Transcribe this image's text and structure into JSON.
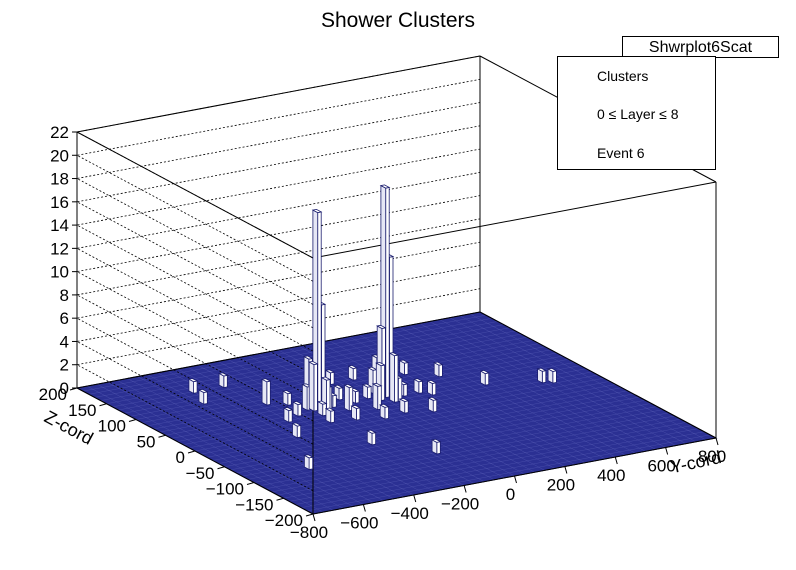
{
  "chart_data": {
    "type": "lego3d",
    "title": "Shower Clusters",
    "xlabel": "Y-cord",
    "ylabel": "Z-cord",
    "xlim": [
      -800,
      800
    ],
    "ylim": [
      -200,
      200
    ],
    "zlim": [
      0,
      22
    ],
    "x_ticks": [
      "−800",
      "−600",
      "−400",
      "−200",
      "0",
      "200",
      "400",
      "600",
      "800"
    ],
    "y_ticks": [
      "−200",
      "−150",
      "−100",
      "−50",
      "0",
      "50",
      "100",
      "150",
      "200"
    ],
    "z_ticks": [
      "0",
      "2",
      "4",
      "6",
      "8",
      "10",
      "12",
      "14",
      "16",
      "18",
      "20",
      "22"
    ],
    "grid": true,
    "fill_color": "#2b3093",
    "bar_color": "#ffffff",
    "bars": [
      {
        "x": -210,
        "y": 45,
        "z": 17
      },
      {
        "x": -195,
        "y": 45,
        "z": 9
      },
      {
        "x": -225,
        "y": 45,
        "z": 4
      },
      {
        "x": -210,
        "y": 60,
        "z": 4
      },
      {
        "x": -210,
        "y": 30,
        "z": 3
      },
      {
        "x": -240,
        "y": 50,
        "z": 2
      },
      {
        "x": -180,
        "y": 40,
        "z": 2
      },
      {
        "x": -195,
        "y": 60,
        "z": 3
      },
      {
        "x": -225,
        "y": 30,
        "z": 1
      },
      {
        "x": 60,
        "y": 45,
        "z": 18
      },
      {
        "x": 75,
        "y": 45,
        "z": 12
      },
      {
        "x": 45,
        "y": 45,
        "z": 6
      },
      {
        "x": 60,
        "y": 30,
        "z": 4
      },
      {
        "x": 60,
        "y": 60,
        "z": 3
      },
      {
        "x": 90,
        "y": 50,
        "z": 2
      },
      {
        "x": 30,
        "y": 40,
        "z": 3
      },
      {
        "x": 75,
        "y": 30,
        "z": 2
      },
      {
        "x": 45,
        "y": 60,
        "z": 2
      },
      {
        "x": -150,
        "y": 45,
        "z": 1
      },
      {
        "x": -120,
        "y": 30,
        "z": 2
      },
      {
        "x": -90,
        "y": 60,
        "z": 1
      },
      {
        "x": -60,
        "y": 45,
        "z": 1
      },
      {
        "x": -30,
        "y": 20,
        "z": 2
      },
      {
        "x": 0,
        "y": 50,
        "z": 1
      },
      {
        "x": 120,
        "y": 40,
        "z": 1
      },
      {
        "x": 150,
        "y": 70,
        "z": 2
      },
      {
        "x": 180,
        "y": 40,
        "z": 1
      },
      {
        "x": 210,
        "y": 30,
        "z": 1
      },
      {
        "x": -270,
        "y": 70,
        "z": 1
      },
      {
        "x": -300,
        "y": 40,
        "z": 1
      },
      {
        "x": -330,
        "y": 80,
        "z": 2
      },
      {
        "x": -360,
        "y": 30,
        "z": 1
      },
      {
        "x": -240,
        "y": 10,
        "z": 1
      },
      {
        "x": -150,
        "y": 5,
        "z": 1
      },
      {
        "x": -60,
        "y": -5,
        "z": 1
      },
      {
        "x": 30,
        "y": 0,
        "z": 1
      },
      {
        "x": 120,
        "y": -10,
        "z": 1
      },
      {
        "x": -120,
        "y": 90,
        "z": 1
      },
      {
        "x": -30,
        "y": 100,
        "z": 1
      },
      {
        "x": 60,
        "y": 100,
        "z": 1
      },
      {
        "x": 240,
        "y": 90,
        "z": 1
      },
      {
        "x": -510,
        "y": 110,
        "z": 1
      },
      {
        "x": -420,
        "y": -10,
        "z": 1
      },
      {
        "x": -360,
        "y": 140,
        "z": 1
      },
      {
        "x": -480,
        "y": 140,
        "z": 1
      },
      {
        "x": 330,
        "y": 70,
        "z": 1
      },
      {
        "x": 420,
        "y": 30,
        "z": 1
      },
      {
        "x": 600,
        "y": 10,
        "z": 1
      },
      {
        "x": 630,
        "y": 5,
        "z": 1
      },
      {
        "x": -560,
        "y": -90,
        "z": 1
      },
      {
        "x": -100,
        "y": -110,
        "z": 1
      },
      {
        "x": -240,
        "y": -60,
        "z": 1
      }
    ]
  },
  "stats_box": {
    "label": "Shwrplot6Scat"
  },
  "legend": {
    "line1": "Clusters",
    "line2": "0 ≤ Layer ≤ 8",
    "line3": "Event 6"
  }
}
